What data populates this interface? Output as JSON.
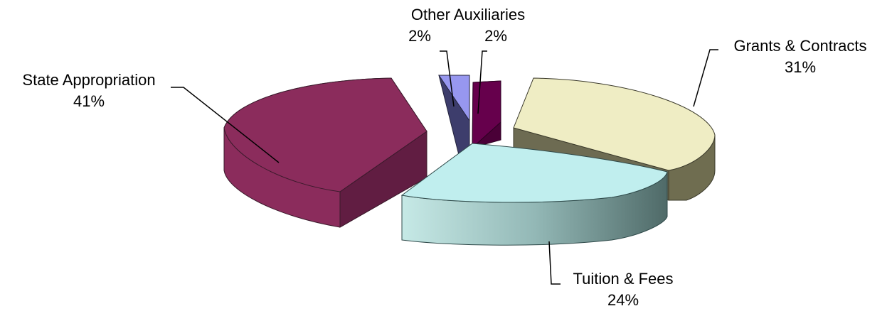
{
  "chart_data": {
    "type": "pie",
    "style": "3D exploded pie",
    "title": "",
    "slices": [
      {
        "label": "Grants & Contracts",
        "value_text": "31%",
        "value": 31,
        "top_color": "#efedc4",
        "side_color": "#6f6d50"
      },
      {
        "label": "Tuition & Fees",
        "value_text": "24%",
        "value": 24,
        "top_color": "#c0eeee",
        "side_color": "#7fa3a3"
      },
      {
        "label": "State Appropriation",
        "value_text": "41%",
        "value": 41,
        "top_color": "#8b2c5c",
        "side_color": "#6a1f45"
      },
      {
        "label": "Other",
        "value_text": "2%",
        "value": 2,
        "top_color": "#9797ef",
        "side_color": "#3d3d6c"
      },
      {
        "label": "Auxiliaries",
        "value_text": "2%",
        "value": 2,
        "top_color": "#66004c",
        "side_color": "#4a0037"
      }
    ],
    "label_format": "Other Auxiliaries"
  }
}
